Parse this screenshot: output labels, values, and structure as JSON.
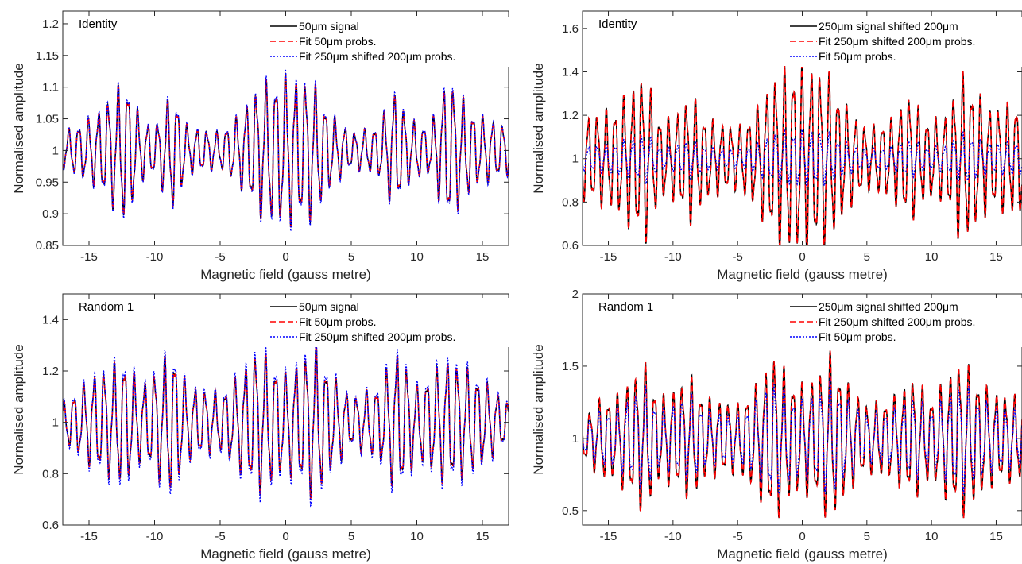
{
  "legend_templates": {
    "a": [
      "50μm signal",
      "Fit 50μm probs.",
      "Fit 250μm shifted 200μm probs."
    ],
    "b": [
      "250μm signal shifted 200μm",
      "Fit 250μm shifted 200μm probs.",
      "Fit 50μm probs."
    ]
  },
  "chart_data": [
    {
      "type": "line",
      "title": "Identity",
      "xlabel": "Magnetic field (gauss metre)",
      "ylabel": "Normalised amplitude",
      "xlim": [
        -17,
        17
      ],
      "ylim": [
        0.85,
        1.22
      ],
      "xticks": [
        -15,
        -10,
        -5,
        0,
        5,
        10,
        15
      ],
      "yticks": [
        0.85,
        0.9,
        0.95,
        1,
        1.05,
        1.1,
        1.15,
        1.2
      ],
      "ytick_labels": [
        "0.85",
        "0.9",
        "0.95",
        "1",
        "1.05",
        "1.1",
        "1.15",
        "1.2"
      ],
      "xtick_labels": [
        "-15",
        "-10",
        "-5",
        "0",
        "5",
        "10",
        "15"
      ],
      "legend": [
        "50μm signal",
        "Fit 50μm probs.",
        "Fit 250μm shifted 200μm probs."
      ],
      "legend_position": "top-right",
      "series": [
        {
          "name": "50μm signal",
          "color": "#000000",
          "style": "solid",
          "amplitude_scale": 1.0
        },
        {
          "name": "Fit 50μm probs.",
          "color": "#ff0000",
          "style": "dashed",
          "amplitude_scale": 1.0
        },
        {
          "name": "Fit 250μm shifted 200μm probs.",
          "color": "#0000ff",
          "style": "dotted",
          "amplitude_scale": 1.05
        }
      ],
      "envelope": [
        [
          -17,
          0.03
        ],
        [
          -14.5,
          0.06
        ],
        [
          -12.2,
          0.12
        ],
        [
          -11,
          0.05
        ],
        [
          -10,
          0.04
        ],
        [
          -8.6,
          0.1
        ],
        [
          -7.5,
          0.04
        ],
        [
          -5,
          0.03
        ],
        [
          -3.5,
          0.06
        ],
        [
          -2,
          0.11
        ],
        [
          0,
          0.125
        ],
        [
          2,
          0.115
        ],
        [
          3.5,
          0.06
        ],
        [
          5,
          0.03
        ],
        [
          7,
          0.04
        ],
        [
          8.3,
          0.1
        ],
        [
          9.5,
          0.05
        ],
        [
          11,
          0.04
        ],
        [
          12.3,
          0.12
        ],
        [
          14.5,
          0.06
        ],
        [
          17,
          0.04
        ]
      ],
      "frequency_cycles_per_unit": 1.33
    },
    {
      "type": "line",
      "title": "Identity",
      "xlabel": "Magnetic field (gauss metre)",
      "ylabel": "Normalised amplitude",
      "xlim": [
        -17,
        17
      ],
      "ylim": [
        0.6,
        1.68
      ],
      "xticks": [
        -15,
        -10,
        -5,
        0,
        5,
        10,
        15
      ],
      "yticks": [
        0.6,
        0.8,
        1,
        1.2,
        1.4,
        1.6
      ],
      "ytick_labels": [
        "0.6",
        "0.8",
        "1",
        "1.2",
        "1.4",
        "1.6"
      ],
      "xtick_labels": [
        "-15",
        "-10",
        "-5",
        "0",
        "5",
        "10",
        "15"
      ],
      "legend": [
        "250μm signal shifted 200μm",
        "Fit 250μm shifted 200μm probs.",
        "Fit 50μm probs."
      ],
      "legend_position": "top-right",
      "series": [
        {
          "name": "250μm signal shifted 200μm",
          "color": "#000000",
          "style": "solid",
          "amplitude_scale": 1.0
        },
        {
          "name": "Fit 250μm shifted 200μm probs.",
          "color": "#ff0000",
          "style": "dashed",
          "amplitude_scale": 1.0
        },
        {
          "name": "Fit 50μm probs.",
          "color": "#0000ff",
          "style": "dotted",
          "amplitude_scale": 0.3
        }
      ],
      "envelope": [
        [
          -17,
          0.2
        ],
        [
          -14.5,
          0.25
        ],
        [
          -12.2,
          0.42
        ],
        [
          -11,
          0.2
        ],
        [
          -10,
          0.2
        ],
        [
          -8.6,
          0.32
        ],
        [
          -7.5,
          0.2
        ],
        [
          -5,
          0.15
        ],
        [
          -3.5,
          0.25
        ],
        [
          -2,
          0.42
        ],
        [
          0,
          0.46
        ],
        [
          2,
          0.42
        ],
        [
          3.5,
          0.25
        ],
        [
          5,
          0.15
        ],
        [
          7,
          0.2
        ],
        [
          8.3,
          0.32
        ],
        [
          9.5,
          0.2
        ],
        [
          11,
          0.2
        ],
        [
          12.3,
          0.42
        ],
        [
          14.5,
          0.25
        ],
        [
          17,
          0.28
        ]
      ],
      "frequency_cycles_per_unit": 1.45
    },
    {
      "type": "line",
      "title": "Random 1",
      "xlabel": "Magnetic field (gauss metre)",
      "ylabel": "Normalised amplitude",
      "xlim": [
        -17,
        17
      ],
      "ylim": [
        0.6,
        1.5
      ],
      "xticks": [
        -15,
        -10,
        -5,
        0,
        5,
        10,
        15
      ],
      "yticks": [
        0.6,
        0.8,
        1,
        1.2,
        1.4
      ],
      "ytick_labels": [
        "0.6",
        "0.8",
        "1",
        "1.2",
        "1.4"
      ],
      "xtick_labels": [
        "-15",
        "-10",
        "-5",
        "0",
        "5",
        "10",
        "15"
      ],
      "legend": [
        "50μm signal",
        "Fit 50μm probs.",
        "Fit 250μm shifted 200μm probs."
      ],
      "legend_position": "top-right",
      "series": [
        {
          "name": "50μm signal",
          "color": "#000000",
          "style": "solid",
          "amplitude_scale": 1.0
        },
        {
          "name": "Fit 50μm probs.",
          "color": "#ff0000",
          "style": "dashed",
          "amplitude_scale": 1.0
        },
        {
          "name": "Fit 250μm shifted 200μm probs.",
          "color": "#0000ff",
          "style": "dotted",
          "amplitude_scale": 1.1
        }
      ],
      "envelope": [
        [
          -17,
          0.08
        ],
        [
          -15.5,
          0.15
        ],
        [
          -14.5,
          0.2
        ],
        [
          -12.2,
          0.26
        ],
        [
          -11,
          0.15
        ],
        [
          -8.6,
          0.3
        ],
        [
          -7.5,
          0.15
        ],
        [
          -5,
          0.12
        ],
        [
          -3.5,
          0.2
        ],
        [
          -2.2,
          0.3
        ],
        [
          -1,
          0.25
        ],
        [
          0,
          0.2
        ],
        [
          1,
          0.25
        ],
        [
          2.2,
          0.32
        ],
        [
          3.5,
          0.2
        ],
        [
          5,
          0.1
        ],
        [
          7,
          0.15
        ],
        [
          8.6,
          0.3
        ],
        [
          10,
          0.15
        ],
        [
          12.3,
          0.26
        ],
        [
          14.5,
          0.2
        ],
        [
          17,
          0.08
        ]
      ],
      "frequency_cycles_per_unit": 1.3
    },
    {
      "type": "line",
      "title": "Random 1",
      "xlabel": "Magnetic field (gauss metre)",
      "ylabel": "Normalised amplitude",
      "xlim": [
        -17,
        17
      ],
      "ylim": [
        0.4,
        2.0
      ],
      "xticks": [
        -15,
        -10,
        -5,
        0,
        5,
        10,
        15
      ],
      "yticks": [
        0.5,
        1,
        1.5,
        2
      ],
      "ytick_labels": [
        "0.5",
        "1",
        "1.5",
        "2"
      ],
      "xtick_labels": [
        "-15",
        "-10",
        "-5",
        "0",
        "5",
        "10",
        "15"
      ],
      "legend": [
        "250μm signal shifted 200μm",
        "Fit 250μm shifted 200μm probs.",
        "Fit 50μm probs."
      ],
      "legend_position": "top-right",
      "series": [
        {
          "name": "250μm signal shifted 200μm",
          "color": "#000000",
          "style": "solid",
          "amplitude_scale": 1.0
        },
        {
          "name": "Fit 250μm shifted 200μm probs.",
          "color": "#ff0000",
          "style": "dashed",
          "amplitude_scale": 1.0
        },
        {
          "name": "Fit 50μm probs.",
          "color": "#0000ff",
          "style": "dotted",
          "amplitude_scale": 0.7
        }
      ],
      "envelope": [
        [
          -17,
          0.15
        ],
        [
          -15.5,
          0.3
        ],
        [
          -14.5,
          0.3
        ],
        [
          -12.2,
          0.55
        ],
        [
          -11,
          0.3
        ],
        [
          -8.6,
          0.45
        ],
        [
          -7.5,
          0.3
        ],
        [
          -5,
          0.25
        ],
        [
          -3.5,
          0.4
        ],
        [
          -2.2,
          0.62
        ],
        [
          -1,
          0.45
        ],
        [
          0,
          0.4
        ],
        [
          1,
          0.45
        ],
        [
          2.2,
          0.62
        ],
        [
          3.5,
          0.4
        ],
        [
          5,
          0.25
        ],
        [
          7,
          0.3
        ],
        [
          8.6,
          0.45
        ],
        [
          10,
          0.3
        ],
        [
          12.3,
          0.58
        ],
        [
          14.5,
          0.35
        ],
        [
          17,
          0.3
        ]
      ],
      "frequency_cycles_per_unit": 1.4
    }
  ]
}
